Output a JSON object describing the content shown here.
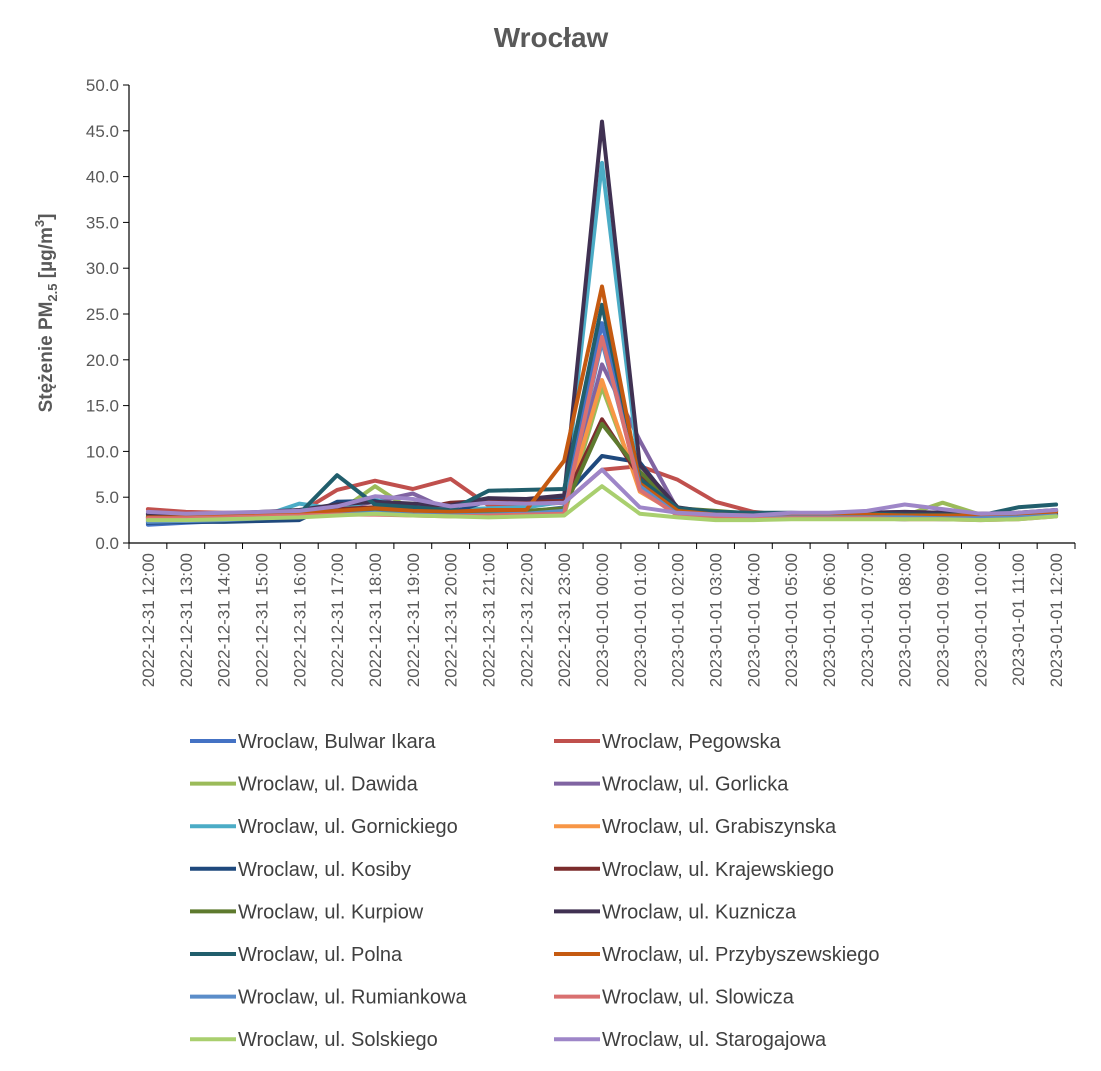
{
  "chart_data": {
    "type": "line",
    "title": "Wrocław",
    "ylabel": "Stężenie PM",
    "ylabel_sub": "2.5",
    "ylabel_unit_pre": " [µg/m",
    "ylabel_unit_sup": "3",
    "ylabel_unit_post": "]",
    "xlabel": "",
    "ylim": [
      0,
      50
    ],
    "yticks": [
      "0.0",
      "5.0",
      "10.0",
      "15.0",
      "20.0",
      "25.0",
      "30.0",
      "35.0",
      "40.0",
      "45.0",
      "50.0"
    ],
    "grid": false,
    "legend_position": "bottom",
    "categories": [
      "2022-12-31 12:00",
      "2022-12-31 13:00",
      "2022-12-31 14:00",
      "2022-12-31 15:00",
      "2022-12-31 16:00",
      "2022-12-31 17:00",
      "2022-12-31 18:00",
      "2022-12-31 19:00",
      "2022-12-31 20:00",
      "2022-12-31 21:00",
      "2022-12-31 22:00",
      "2022-12-31 23:00",
      "2023-01-01 00:00",
      "2023-01-01 01:00",
      "2023-01-01 02:00",
      "2023-01-01 03:00",
      "2023-01-01 04:00",
      "2023-01-01 05:00",
      "2023-01-01 06:00",
      "2023-01-01 07:00",
      "2023-01-01 08:00",
      "2023-01-01 09:00",
      "2023-01-01 10:00",
      "2023-01-01 11:00",
      "2023-01-01 12:00"
    ],
    "series": [
      {
        "name": "Wroclaw, Bulwar Ikara",
        "color": "#4472C4",
        "values": [
          2.0,
          2.2,
          2.4,
          2.6,
          2.8,
          3.2,
          3.6,
          3.3,
          3.2,
          3.3,
          3.4,
          3.9,
          24.0,
          6.5,
          3.2,
          2.8,
          2.6,
          2.8,
          2.9,
          2.9,
          2.7,
          2.6,
          2.6,
          2.7,
          3.0
        ]
      },
      {
        "name": "Wroclaw, Pegowska",
        "color": "#C0504D",
        "values": [
          3.7,
          3.4,
          3.3,
          3.3,
          3.3,
          5.8,
          6.8,
          5.9,
          7.0,
          4.1,
          4.2,
          4.4,
          8.0,
          8.4,
          6.9,
          4.5,
          3.4,
          3.0,
          3.1,
          3.0,
          2.9,
          2.8,
          2.7,
          2.8,
          3.1
        ]
      },
      {
        "name": "Wroclaw, ul. Dawida",
        "color": "#9BBB59",
        "values": [
          2.6,
          2.6,
          2.7,
          2.8,
          3.0,
          3.3,
          6.2,
          3.5,
          3.2,
          3.0,
          3.0,
          3.1,
          17.0,
          6.0,
          3.0,
          2.8,
          2.7,
          2.8,
          2.9,
          2.9,
          3.0,
          4.4,
          3.1,
          3.0,
          3.2
        ]
      },
      {
        "name": "Wroclaw, ul. Gorlicka",
        "color": "#8064A2",
        "values": [
          3.1,
          3.0,
          3.1,
          3.2,
          3.3,
          3.8,
          4.5,
          5.4,
          3.5,
          3.4,
          3.4,
          3.6,
          19.5,
          11.2,
          3.6,
          3.0,
          2.9,
          3.1,
          3.2,
          3.3,
          3.4,
          3.3,
          3.2,
          3.3,
          3.5
        ]
      },
      {
        "name": "Wroclaw, ul. Gornickiego",
        "color": "#4BACC6",
        "values": [
          2.7,
          2.7,
          2.8,
          2.9,
          4.3,
          3.7,
          4.7,
          3.8,
          3.6,
          3.8,
          3.9,
          4.5,
          41.5,
          7.5,
          3.6,
          3.2,
          3.1,
          3.2,
          3.2,
          3.1,
          3.1,
          3.0,
          3.0,
          3.2,
          3.6
        ]
      },
      {
        "name": "Wroclaw, ul. Grabiszynska",
        "color": "#F79646",
        "values": [
          2.4,
          2.5,
          2.6,
          2.8,
          3.0,
          3.2,
          3.4,
          3.2,
          3.1,
          3.1,
          3.2,
          3.6,
          17.8,
          5.6,
          3.2,
          2.8,
          2.7,
          2.8,
          2.9,
          2.9,
          2.9,
          2.8,
          2.7,
          2.8,
          3.1
        ]
      },
      {
        "name": "Wroclaw, ul. Kosiby",
        "color": "#1F497D",
        "values": [
          2.2,
          2.3,
          2.3,
          2.4,
          2.5,
          4.5,
          4.6,
          3.6,
          3.3,
          4.6,
          4.6,
          5.0,
          9.5,
          8.8,
          3.5,
          3.0,
          2.6,
          3.0,
          2.8,
          2.7,
          2.6,
          2.8,
          2.8,
          3.0,
          3.2
        ]
      },
      {
        "name": "Wroclaw, ul. Krajewskiego",
        "color": "#7B2C2C",
        "values": [
          2.8,
          2.9,
          3.0,
          3.2,
          3.4,
          3.7,
          3.9,
          3.6,
          4.4,
          4.6,
          4.5,
          4.6,
          13.5,
          7.2,
          3.7,
          3.2,
          3.0,
          3.1,
          3.1,
          3.1,
          3.0,
          3.0,
          3.0,
          3.1,
          3.4
        ]
      },
      {
        "name": "Wroclaw, ul. Kurpiow",
        "color": "#5E7A2E",
        "values": [
          2.9,
          3.0,
          3.0,
          3.1,
          3.2,
          3.5,
          3.6,
          3.4,
          3.3,
          3.4,
          3.5,
          3.8,
          13.0,
          7.8,
          3.8,
          3.5,
          3.2,
          3.2,
          3.1,
          3.1,
          3.0,
          3.1,
          3.1,
          3.2,
          3.5
        ]
      },
      {
        "name": "Wroclaw, ul. Kuznicza",
        "color": "#403152",
        "values": [
          3.2,
          3.1,
          3.2,
          3.4,
          3.6,
          4.2,
          4.5,
          4.3,
          4.1,
          4.9,
          4.8,
          5.2,
          46.0,
          8.5,
          3.9,
          3.3,
          3.1,
          3.2,
          3.2,
          3.3,
          3.4,
          3.3,
          3.2,
          3.3,
          3.6
        ]
      },
      {
        "name": "Wroclaw, ul. Polna",
        "color": "#215E6C",
        "values": [
          2.5,
          2.6,
          2.8,
          3.0,
          3.2,
          7.4,
          4.2,
          3.9,
          3.6,
          5.7,
          5.8,
          5.9,
          26.0,
          7.0,
          3.8,
          3.4,
          3.3,
          3.3,
          3.2,
          3.2,
          3.1,
          3.1,
          3.0,
          3.9,
          4.2
        ]
      },
      {
        "name": "Wroclaw, ul. Przybyszewskiego",
        "color": "#C55A11",
        "values": [
          2.8,
          2.8,
          2.9,
          3.0,
          3.2,
          3.5,
          3.8,
          3.5,
          3.4,
          3.6,
          3.6,
          9.0,
          28.0,
          6.5,
          3.5,
          3.1,
          3.0,
          3.1,
          3.1,
          3.1,
          3.0,
          3.0,
          3.0,
          3.1,
          3.4
        ]
      },
      {
        "name": "Wroclaw, ul. Rumiankowa",
        "color": "#5B8DC9",
        "values": [
          2.3,
          2.4,
          2.5,
          2.7,
          2.9,
          3.1,
          3.3,
          3.1,
          3.0,
          3.1,
          3.2,
          3.5,
          22.0,
          6.2,
          3.1,
          2.8,
          2.7,
          2.8,
          2.8,
          2.8,
          2.8,
          2.7,
          2.7,
          2.8,
          3.0
        ]
      },
      {
        "name": "Wroclaw, ul. Slowicza",
        "color": "#D97070",
        "values": [
          2.7,
          2.7,
          2.8,
          2.9,
          3.0,
          3.1,
          3.1,
          3.0,
          2.9,
          3.0,
          3.1,
          3.2,
          22.5,
          5.8,
          3.0,
          2.7,
          2.6,
          2.7,
          2.7,
          2.7,
          2.6,
          2.6,
          2.5,
          2.6,
          2.9
        ]
      },
      {
        "name": "Wroclaw, ul. Solskiego",
        "color": "#A9CF6E",
        "values": [
          2.5,
          2.5,
          2.6,
          2.7,
          2.8,
          3.0,
          3.2,
          3.0,
          2.9,
          2.8,
          2.9,
          3.0,
          6.2,
          3.2,
          2.8,
          2.5,
          2.5,
          2.6,
          2.6,
          2.6,
          2.6,
          2.6,
          2.5,
          2.6,
          2.9
        ]
      },
      {
        "name": "Wroclaw, ul. Starogajowa",
        "color": "#9E86C8",
        "values": [
          3.4,
          3.2,
          3.3,
          3.4,
          3.5,
          4.0,
          5.1,
          4.8,
          4.0,
          4.4,
          4.3,
          4.4,
          8.0,
          3.9,
          3.3,
          3.1,
          3.0,
          3.3,
          3.3,
          3.5,
          4.2,
          3.7,
          3.2,
          3.3,
          3.6
        ]
      }
    ]
  }
}
